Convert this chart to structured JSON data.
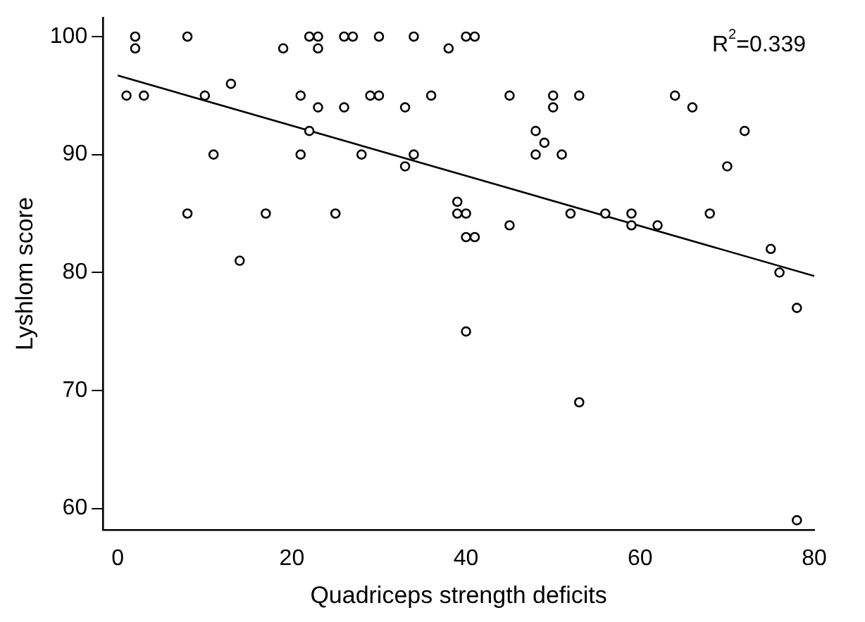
{
  "chart_data": {
    "type": "scatter",
    "xlabel": "Quadriceps strength deficits",
    "ylabel": "Lyshlom score",
    "xlim": [
      -1.7,
      80
    ],
    "xticks": [
      0,
      20,
      40,
      60,
      80
    ],
    "ylim": [
      58.2,
      101.6
    ],
    "yticks": [
      60,
      70,
      80,
      90,
      100
    ],
    "grid": false,
    "legend": false,
    "marker": "circle",
    "annotations": [
      "R$^{2}$=0.339"
    ],
    "series": [
      {
        "color": "#000000",
        "x": [
          1,
          2,
          2,
          3,
          8,
          8,
          10,
          11,
          13,
          14,
          17,
          19,
          21,
          21,
          22,
          22,
          23,
          23,
          23,
          25,
          26,
          26,
          27,
          28,
          29,
          30,
          30,
          33,
          33,
          34,
          34,
          36,
          38,
          39,
          39,
          40,
          40,
          40,
          40,
          41,
          41,
          45,
          45,
          48,
          48,
          49,
          50,
          50,
          51,
          52,
          53,
          53,
          56,
          59,
          59,
          62,
          64,
          66,
          68,
          70,
          72,
          75,
          76,
          78,
          78
        ],
        "values": [
          95,
          100,
          99,
          95,
          100,
          85,
          95,
          90,
          96,
          81,
          85,
          99,
          95,
          90,
          92,
          100,
          100,
          99,
          94,
          85,
          94,
          100,
          100,
          90,
          95,
          100,
          95,
          94,
          89,
          100,
          90,
          95,
          99,
          86,
          85,
          100,
          85,
          83,
          75,
          100,
          83,
          95,
          84,
          92,
          90,
          91,
          95,
          94,
          90,
          85,
          95,
          69,
          85,
          85,
          84,
          84,
          95,
          94,
          85,
          89,
          92,
          82,
          80,
          77,
          59
        ]
      },
      {
        "type": "line",
        "color": "#000000",
        "x": [
          0,
          80
        ],
        "values": [
          96.7,
          79.7
        ],
        "marker": "none",
        "line_style": "solid"
      }
    ]
  }
}
